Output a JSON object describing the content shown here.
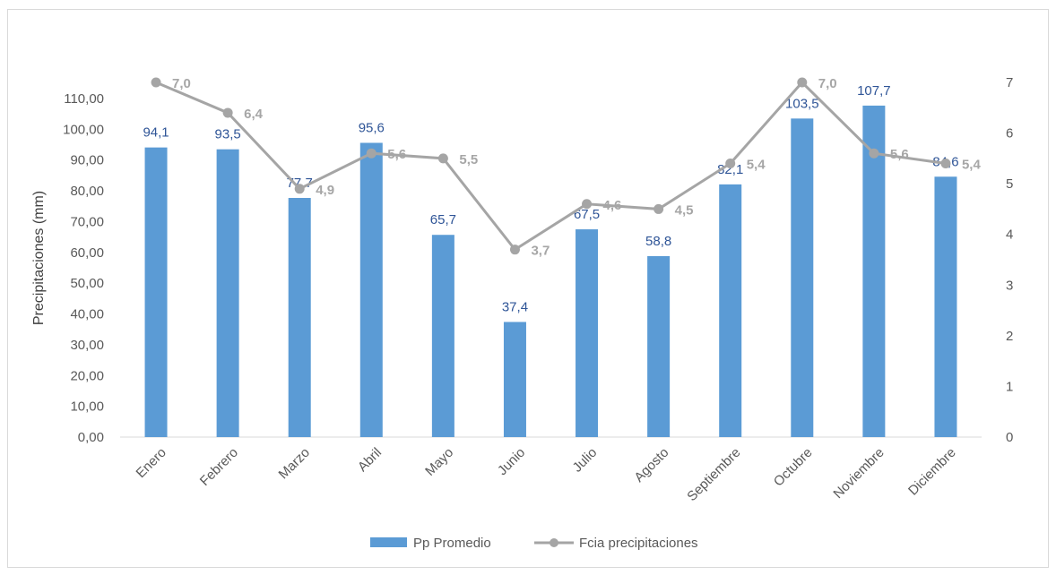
{
  "chart_data": {
    "type": "bar",
    "categories": [
      "Enero",
      "Febrero",
      "Marzo",
      "Abril",
      "Mayo",
      "Junio",
      "Julio",
      "Agosto",
      "Septiembre",
      "Octubre",
      "Noviembre",
      "Diciembre"
    ],
    "series": [
      {
        "name": "Pp Promedio",
        "kind": "bar",
        "axis": "left",
        "color": "#5b9bd5",
        "values": [
          94.1,
          93.5,
          77.7,
          95.6,
          65.7,
          37.4,
          67.5,
          58.8,
          82.1,
          103.5,
          107.7,
          84.6
        ],
        "labels": [
          "94,1",
          "93,5",
          "77,7",
          "95,6",
          "65,7",
          "37,4",
          "67,5",
          "58,8",
          "82,1",
          "103,5",
          "107,7",
          "84,6"
        ]
      },
      {
        "name": "Fcia precipitaciones",
        "kind": "line",
        "axis": "right",
        "color": "#a5a5a5",
        "values": [
          7.0,
          6.4,
          4.9,
          5.6,
          5.5,
          3.7,
          4.6,
          4.5,
          5.4,
          7.0,
          5.6,
          5.4
        ],
        "labels": [
          "7,0",
          "6,4",
          "4,9",
          "5,6",
          "5,5",
          "3,7",
          "4,6",
          "4,5",
          "5,4",
          "7,0",
          "5,6",
          "5,4"
        ]
      }
    ],
    "ylabel": "Precipitaciones (mm)",
    "ylim": [
      0,
      115
    ],
    "yticks": [
      0,
      10,
      20,
      30,
      40,
      50,
      60,
      70,
      80,
      90,
      100,
      110
    ],
    "ytick_labels": [
      "0,00",
      "10,00",
      "20,00",
      "30,00",
      "40,00",
      "50,00",
      "60,00",
      "70,00",
      "80,00",
      "90,00",
      "100,00",
      "110,00"
    ],
    "y2lim": [
      0,
      7
    ],
    "y2ticks": [
      0,
      1,
      2,
      3,
      4,
      5,
      6,
      7
    ],
    "y2tick_labels": [
      "0",
      "1",
      "2",
      "3",
      "4",
      "5",
      "6",
      "7"
    ],
    "grid": false,
    "legend": "bottom"
  }
}
